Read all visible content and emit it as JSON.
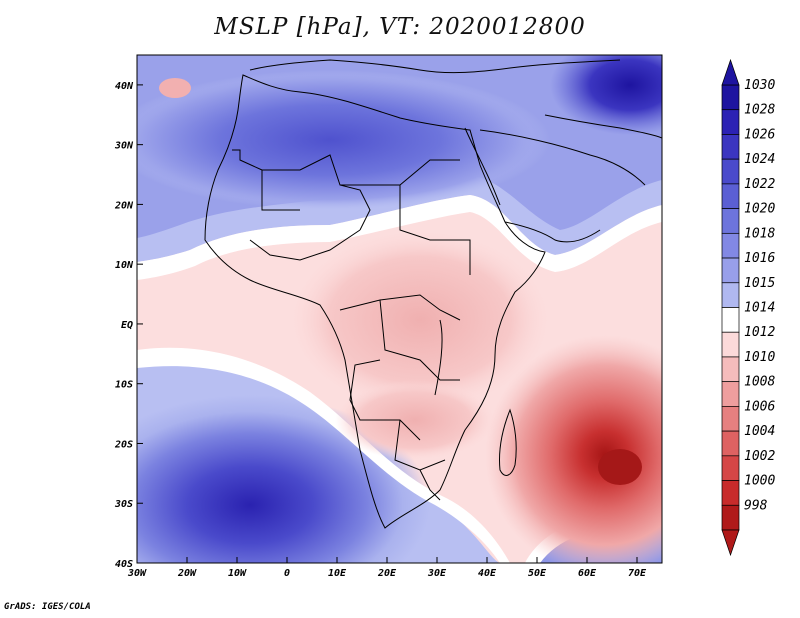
{
  "title": "MSLP [hPa], VT: 2020012800",
  "credit": "GrADS: IGES/COLA",
  "map": {
    "lon_range": [
      -30,
      75
    ],
    "lat_range": [
      -40,
      45
    ],
    "lat_ticks": [
      {
        "value": 40,
        "label": "40N"
      },
      {
        "value": 30,
        "label": "30N"
      },
      {
        "value": 20,
        "label": "20N"
      },
      {
        "value": 10,
        "label": "10N"
      },
      {
        "value": 0,
        "label": "EQ"
      },
      {
        "value": -10,
        "label": "10S"
      },
      {
        "value": -20,
        "label": "20S"
      },
      {
        "value": -30,
        "label": "30S"
      },
      {
        "value": -40,
        "label": "40S"
      }
    ],
    "lon_ticks": [
      {
        "value": -30,
        "label": "30W"
      },
      {
        "value": -20,
        "label": "20W"
      },
      {
        "value": -10,
        "label": "10W"
      },
      {
        "value": 0,
        "label": "0"
      },
      {
        "value": 10,
        "label": "10E"
      },
      {
        "value": 20,
        "label": "20E"
      },
      {
        "value": 30,
        "label": "30E"
      },
      {
        "value": 40,
        "label": "40E"
      },
      {
        "value": 50,
        "label": "50E"
      },
      {
        "value": 60,
        "label": "60E"
      },
      {
        "value": 70,
        "label": "70E"
      }
    ],
    "pressure_features": [
      {
        "name": "south-atlantic-high",
        "lon": -7,
        "lat": -32,
        "value": 1027
      },
      {
        "name": "mascarene-low",
        "lon": 66,
        "lat": -26,
        "value": 999
      },
      {
        "name": "saharan-high",
        "lon": 15,
        "lat": 28,
        "value": 1022
      },
      {
        "name": "central-asia-high",
        "lon": 70,
        "lat": 42,
        "value": 1029
      },
      {
        "name": "equatorial-trough",
        "lon": 25,
        "lat": 0,
        "value": 1011
      }
    ]
  },
  "colorbar": {
    "levels": [
      "1030",
      "1028",
      "1026",
      "1024",
      "1022",
      "1020",
      "1018",
      "1016",
      "1015",
      "1014",
      "1012",
      "1010",
      "1008",
      "1006",
      "1004",
      "1002",
      "1000",
      "998"
    ],
    "colors": [
      "#1e14a0",
      "#2c22b4",
      "#3b35c0",
      "#4a4acb",
      "#5b5fd4",
      "#6d74dc",
      "#8288e4",
      "#989fea",
      "#b0b8f0",
      "#ffffff",
      "#fcdada",
      "#f5bcbc",
      "#ee9e9e",
      "#e68080",
      "#de6262",
      "#d54646",
      "#c82b2b",
      "#b01a1a"
    ]
  }
}
